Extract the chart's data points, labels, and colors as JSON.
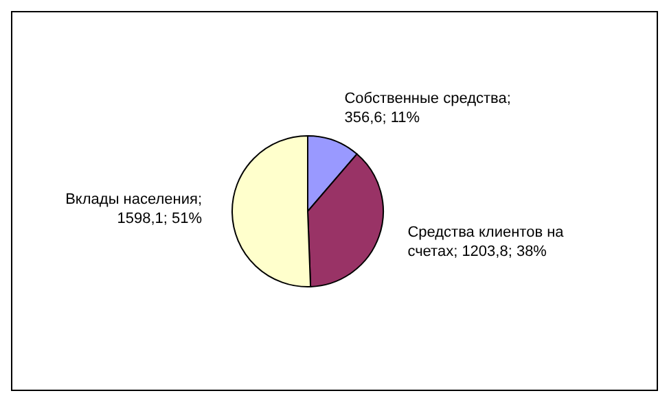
{
  "chart_data": {
    "type": "pie",
    "categories": [
      "Собственные средства",
      "Средства клиентов на счетах",
      "Вклады населения"
    ],
    "values": [
      356.6,
      1203.8,
      1598.1
    ],
    "value_labels": [
      "; 356,6; 11%",
      "; 1203,8; 38%",
      "; 1598,1; 51%"
    ],
    "colors": [
      "#9999ff",
      "#993366",
      "#ffffcc"
    ],
    "legend": false
  }
}
